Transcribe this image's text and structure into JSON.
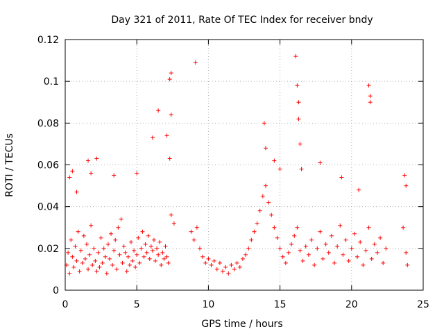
{
  "chart_data": {
    "type": "scatter",
    "title": "Day 321 of 2011, Rate Of TEC Index for receiver bndy",
    "xlabel": "GPS time / hours",
    "ylabel": "ROTI / TECUs",
    "xlim": [
      0,
      25
    ],
    "ylim": [
      0,
      0.12
    ],
    "x_ticks": [
      0,
      5,
      10,
      15,
      20,
      25
    ],
    "x_tick_labels": [
      "0",
      "5",
      "10",
      "15",
      "20",
      "25"
    ],
    "y_ticks": [
      0,
      0.02,
      0.04,
      0.06,
      0.08,
      0.1,
      0.12
    ],
    "y_tick_labels": [
      "0",
      "0.02",
      "0.04",
      "0.06",
      "0.08",
      "0.1",
      "0.12"
    ],
    "grid": true,
    "legend": "none",
    "marker": "+",
    "color": "#ff0000",
    "series": [
      {
        "points": [
          [
            0.1,
            0.012
          ],
          [
            0.2,
            0.018
          ],
          [
            0.3,
            0.008
          ],
          [
            0.4,
            0.024
          ],
          [
            0.5,
            0.016
          ],
          [
            0.6,
            0.011
          ],
          [
            0.7,
            0.021
          ],
          [
            0.8,
            0.014
          ],
          [
            0.9,
            0.028
          ],
          [
            1.0,
            0.009
          ],
          [
            1.1,
            0.019
          ],
          [
            1.2,
            0.013
          ],
          [
            1.3,
            0.026
          ],
          [
            1.4,
            0.015
          ],
          [
            1.5,
            0.022
          ],
          [
            1.6,
            0.01
          ],
          [
            1.7,
            0.017
          ],
          [
            1.8,
            0.031
          ],
          [
            1.9,
            0.012
          ],
          [
            2.0,
            0.02
          ],
          [
            2.1,
            0.014
          ],
          [
            2.2,
            0.009
          ],
          [
            2.3,
            0.018
          ],
          [
            2.4,
            0.011
          ],
          [
            2.5,
            0.025
          ],
          [
            2.6,
            0.013
          ],
          [
            2.7,
            0.02
          ],
          [
            2.8,
            0.016
          ],
          [
            2.9,
            0.008
          ],
          [
            3.0,
            0.022
          ],
          [
            3.1,
            0.015
          ],
          [
            3.2,
            0.027
          ],
          [
            3.3,
            0.012
          ],
          [
            3.4,
            0.019
          ],
          [
            3.5,
            0.024
          ],
          [
            3.6,
            0.01
          ],
          [
            3.7,
            0.03
          ],
          [
            3.8,
            0.017
          ],
          [
            3.9,
            0.034
          ],
          [
            4.0,
            0.013
          ],
          [
            4.1,
            0.021
          ],
          [
            4.2,
            0.018
          ],
          [
            4.3,
            0.009
          ],
          [
            4.4,
            0.016
          ],
          [
            4.5,
            0.012
          ],
          [
            4.6,
            0.023
          ],
          [
            4.7,
            0.014
          ],
          [
            4.8,
            0.019
          ],
          [
            4.9,
            0.011
          ],
          [
            5.0,
            0.017
          ],
          [
            5.1,
            0.025
          ],
          [
            5.2,
            0.013
          ],
          [
            5.3,
            0.02
          ],
          [
            5.4,
            0.028
          ],
          [
            5.5,
            0.016
          ],
          [
            5.6,
            0.022
          ],
          [
            5.7,
            0.018
          ],
          [
            5.8,
            0.026
          ],
          [
            5.9,
            0.015
          ],
          [
            6.0,
            0.021
          ],
          [
            6.1,
            0.019
          ],
          [
            6.2,
            0.024
          ],
          [
            6.3,
            0.014
          ],
          [
            6.4,
            0.02
          ],
          [
            6.5,
            0.017
          ],
          [
            6.6,
            0.023
          ],
          [
            6.7,
            0.012
          ],
          [
            6.8,
            0.018
          ],
          [
            6.9,
            0.015
          ],
          [
            7.0,
            0.021
          ],
          [
            7.1,
            0.016
          ],
          [
            7.2,
            0.013
          ],
          [
            7.4,
            0.036
          ],
          [
            7.6,
            0.032
          ],
          [
            8.8,
            0.028
          ],
          [
            9.0,
            0.024
          ],
          [
            9.2,
            0.03
          ],
          [
            9.4,
            0.02
          ],
          [
            9.6,
            0.016
          ],
          [
            9.8,
            0.013
          ],
          [
            10.0,
            0.015
          ],
          [
            10.2,
            0.012
          ],
          [
            10.4,
            0.014
          ],
          [
            10.6,
            0.01
          ],
          [
            10.8,
            0.013
          ],
          [
            11.0,
            0.009
          ],
          [
            11.2,
            0.011
          ],
          [
            11.4,
            0.008
          ],
          [
            11.6,
            0.012
          ],
          [
            11.8,
            0.01
          ],
          [
            12.0,
            0.013
          ],
          [
            12.2,
            0.011
          ],
          [
            12.4,
            0.015
          ],
          [
            12.6,
            0.017
          ],
          [
            12.8,
            0.02
          ],
          [
            13.0,
            0.024
          ],
          [
            13.2,
            0.028
          ],
          [
            13.4,
            0.032
          ],
          [
            13.6,
            0.038
          ],
          [
            13.8,
            0.045
          ],
          [
            14.0,
            0.05
          ],
          [
            14.2,
            0.042
          ],
          [
            14.4,
            0.036
          ],
          [
            14.6,
            0.03
          ],
          [
            14.8,
            0.025
          ],
          [
            15.0,
            0.02
          ],
          [
            15.2,
            0.016
          ],
          [
            15.4,
            0.013
          ],
          [
            15.6,
            0.018
          ],
          [
            15.8,
            0.022
          ],
          [
            16.0,
            0.026
          ],
          [
            16.2,
            0.03
          ],
          [
            16.4,
            0.019
          ],
          [
            16.6,
            0.014
          ],
          [
            16.8,
            0.021
          ],
          [
            17.0,
            0.017
          ],
          [
            17.2,
            0.024
          ],
          [
            17.4,
            0.012
          ],
          [
            17.6,
            0.02
          ],
          [
            17.8,
            0.028
          ],
          [
            18.0,
            0.015
          ],
          [
            18.2,
            0.022
          ],
          [
            18.4,
            0.018
          ],
          [
            18.6,
            0.026
          ],
          [
            18.8,
            0.013
          ],
          [
            19.0,
            0.021
          ],
          [
            19.2,
            0.031
          ],
          [
            19.4,
            0.017
          ],
          [
            19.6,
            0.024
          ],
          [
            19.8,
            0.014
          ],
          [
            20.0,
            0.02
          ],
          [
            20.2,
            0.027
          ],
          [
            20.4,
            0.016
          ],
          [
            20.6,
            0.023
          ],
          [
            20.8,
            0.012
          ],
          [
            21.0,
            0.019
          ],
          [
            21.2,
            0.03
          ],
          [
            21.4,
            0.015
          ],
          [
            21.6,
            0.022
          ],
          [
            21.8,
            0.018
          ],
          [
            22.0,
            0.025
          ],
          [
            22.2,
            0.013
          ],
          [
            22.4,
            0.02
          ],
          [
            23.6,
            0.03
          ],
          [
            23.8,
            0.018
          ],
          [
            23.9,
            0.012
          ],
          [
            0.3,
            0.054
          ],
          [
            0.5,
            0.057
          ],
          [
            0.8,
            0.047
          ],
          [
            1.6,
            0.062
          ],
          [
            1.8,
            0.056
          ],
          [
            2.2,
            0.063
          ],
          [
            3.4,
            0.055
          ],
          [
            5.0,
            0.056
          ],
          [
            6.1,
            0.073
          ],
          [
            6.5,
            0.086
          ],
          [
            7.1,
            0.074
          ],
          [
            7.3,
            0.063
          ],
          [
            7.3,
            0.101
          ],
          [
            7.4,
            0.084
          ],
          [
            7.4,
            0.104
          ],
          [
            9.1,
            0.109
          ],
          [
            13.9,
            0.08
          ],
          [
            14.0,
            0.068
          ],
          [
            14.6,
            0.062
          ],
          [
            15.0,
            0.058
          ],
          [
            16.1,
            0.112
          ],
          [
            16.2,
            0.098
          ],
          [
            16.3,
            0.09
          ],
          [
            16.3,
            0.082
          ],
          [
            16.4,
            0.07
          ],
          [
            16.5,
            0.058
          ],
          [
            17.8,
            0.061
          ],
          [
            19.3,
            0.054
          ],
          [
            20.5,
            0.048
          ],
          [
            21.2,
            0.098
          ],
          [
            21.3,
            0.093
          ],
          [
            21.3,
            0.09
          ],
          [
            23.7,
            0.055
          ],
          [
            23.8,
            0.05
          ]
        ]
      }
    ]
  }
}
